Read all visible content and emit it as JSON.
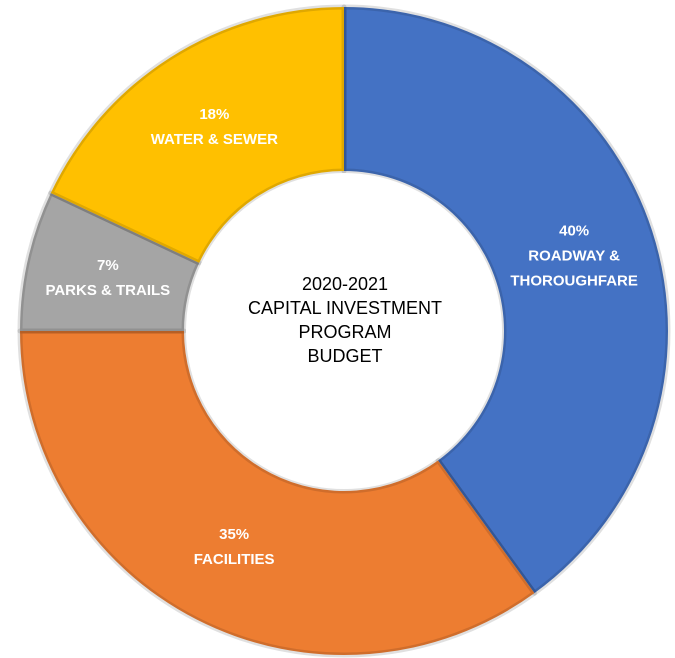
{
  "chart_data": {
    "type": "donut",
    "center_text": [
      "2020-2021",
      "CAPITAL INVESTMENT",
      "PROGRAM",
      "BUDGET"
    ],
    "categories": [
      "ROADWAY & THOROUGHFARE",
      "FACILITIES",
      "PARKS & TRAILS",
      "WATER & SEWER"
    ],
    "values": [
      40,
      35,
      7,
      18
    ],
    "value_labels": [
      "40%",
      "35%",
      "7%",
      "18%"
    ],
    "colors": [
      "#4472c4",
      "#ed7d31",
      "#a5a5a5",
      "#ffc000"
    ]
  }
}
